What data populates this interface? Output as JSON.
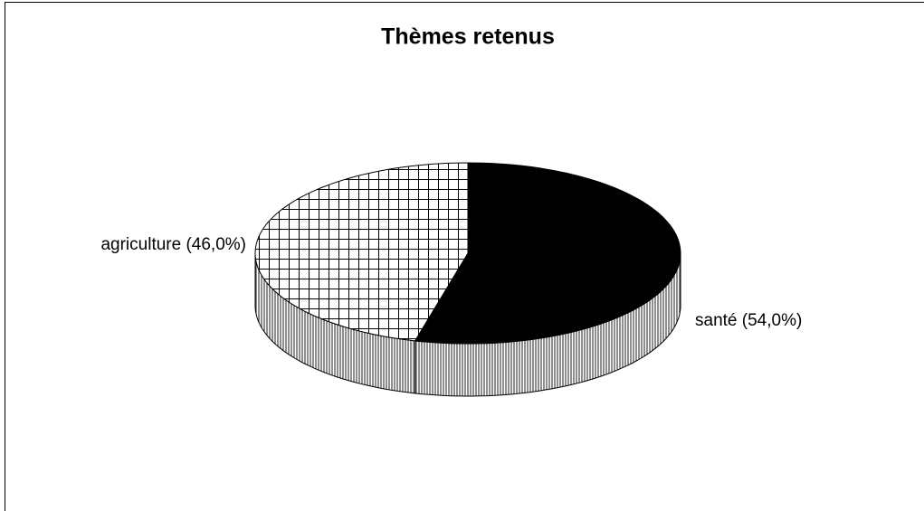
{
  "chart_data": {
    "type": "pie",
    "title": "Thèmes retenus",
    "values": [
      46.0,
      54.0
    ],
    "value_labels": [
      "agriculture (46,0%)",
      "santé (54,0%)"
    ],
    "colors": [
      "#ffffff",
      "#000000"
    ]
  }
}
